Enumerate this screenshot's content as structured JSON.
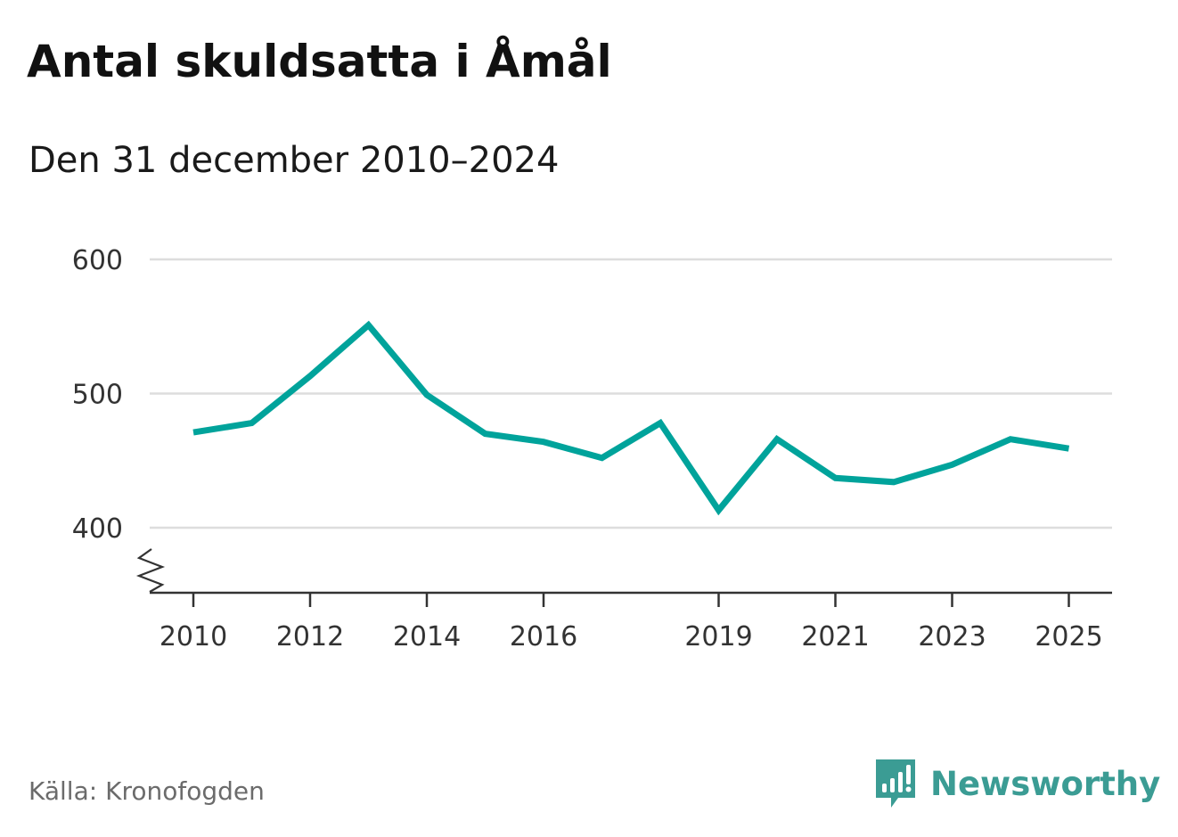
{
  "header": {
    "title": "Antal skuldsatta i Åmål",
    "subtitle": "Den 31 december 2010–2024"
  },
  "footer": {
    "source": "Källa: Kronofogden",
    "brand": "Newsworthy",
    "brand_icon": "bar-chart-speech-bubble-icon"
  },
  "colors": {
    "line": "#00a39b",
    "grid": "#dddddd",
    "axis": "#333333",
    "brand": "#3b9c94"
  },
  "chart_data": {
    "type": "line",
    "title": "Antal skuldsatta i Åmål",
    "subtitle": "Den 31 december 2010–2024",
    "xlabel": "",
    "ylabel": "",
    "x": [
      2010,
      2011,
      2012,
      2013,
      2014,
      2015,
      2016,
      2017,
      2018,
      2019,
      2020,
      2021,
      2022,
      2023,
      2024,
      2025
    ],
    "series": [
      {
        "values": [
          471,
          478,
          513,
          551,
          499,
          470,
          464,
          452,
          478,
          413,
          466,
          437,
          434,
          447,
          466,
          459
        ]
      }
    ],
    "xticks": [
      "2010",
      "2012",
      "2014",
      "2016",
      "2019",
      "2021",
      "2023",
      "2025"
    ],
    "yticks": [
      "400",
      "500",
      "600"
    ],
    "ylim": [
      350,
      600
    ],
    "y_axis_break": true,
    "grid": "horizontal",
    "legend": "none"
  }
}
